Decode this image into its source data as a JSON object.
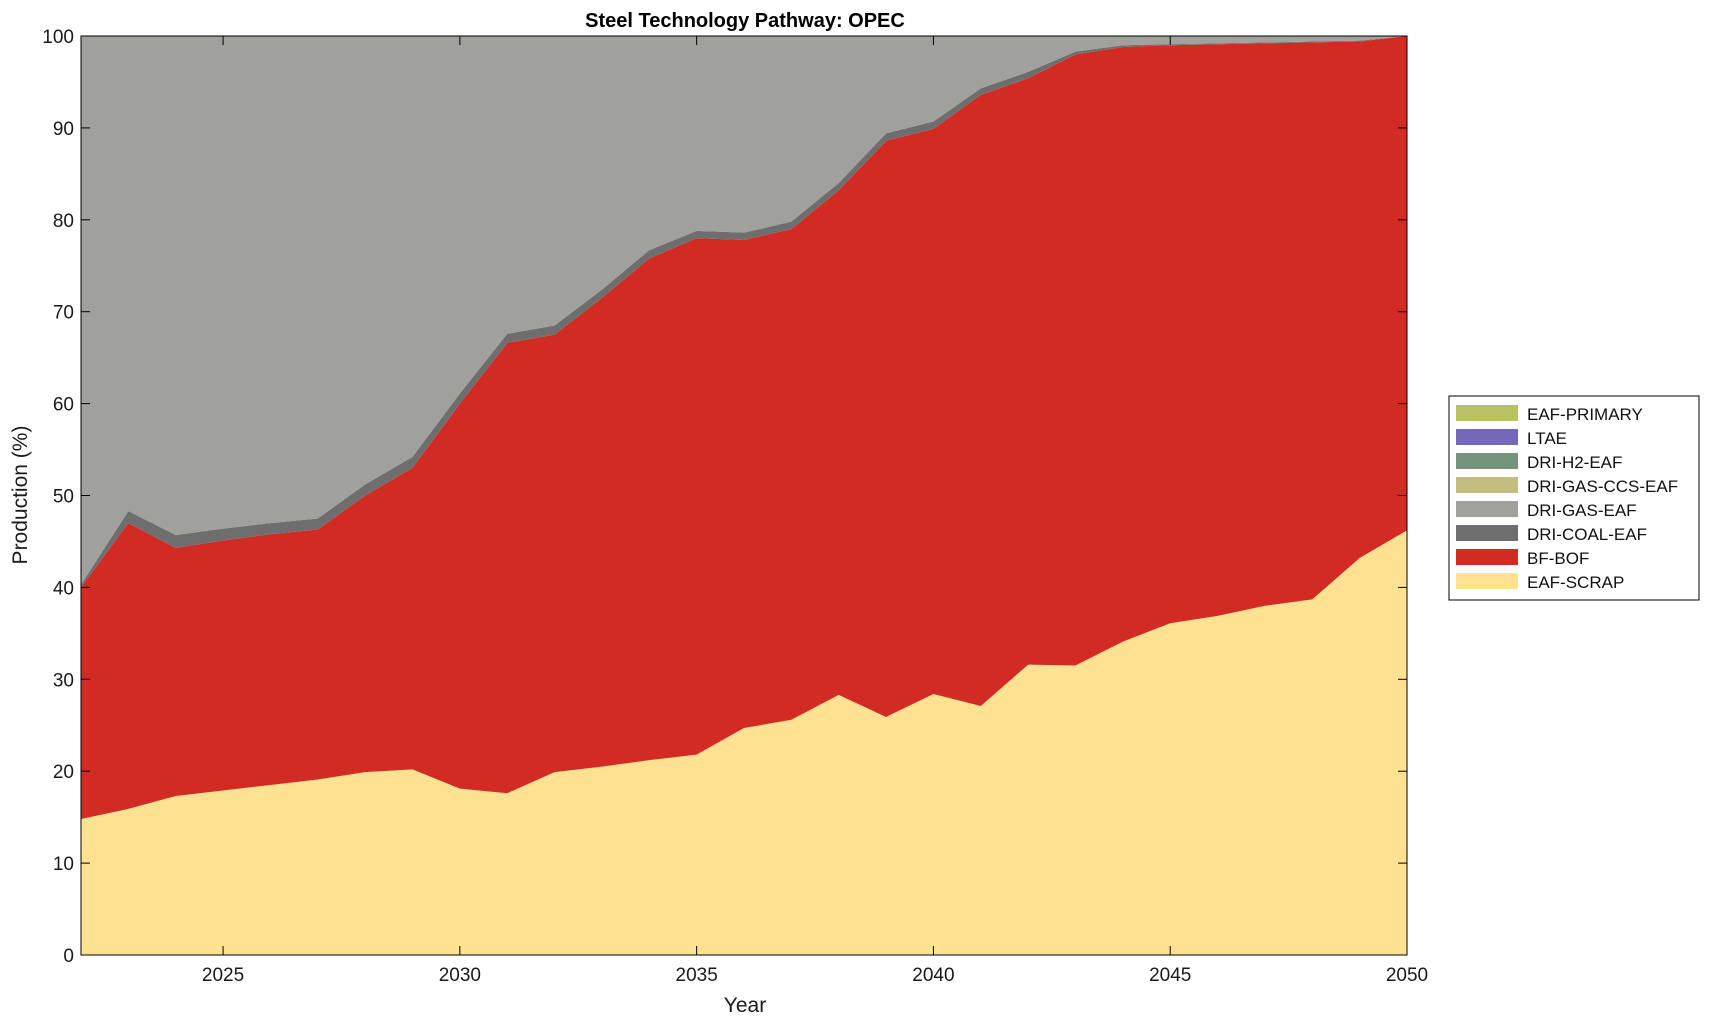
{
  "chart_data": {
    "type": "area",
    "title": "Steel Technology Pathway: OPEC",
    "xlabel": "Year",
    "ylabel": "Production (%)",
    "xlim": [
      2022,
      2050
    ],
    "ylim": [
      0,
      100
    ],
    "xticks": [
      2025,
      2030,
      2035,
      2040,
      2045,
      2050
    ],
    "yticks": [
      0,
      10,
      20,
      30,
      40,
      50,
      60,
      70,
      80,
      90,
      100
    ],
    "grid": false,
    "legend_position": "right",
    "x": [
      2022,
      2023,
      2024,
      2025,
      2026,
      2027,
      2028,
      2029,
      2030,
      2031,
      2032,
      2033,
      2034,
      2035,
      2036,
      2037,
      2038,
      2039,
      2040,
      2041,
      2042,
      2043,
      2044,
      2045,
      2046,
      2047,
      2048,
      2049,
      2050
    ],
    "stack_order_bottom_to_top": [
      "EAF-SCRAP",
      "BF-BOF",
      "DRI-COAL-EAF",
      "DRI-GAS-EAF",
      "DRI-GAS-CCS-EAF",
      "DRI-H2-EAF",
      "LTAE",
      "EAF-PRIMARY"
    ],
    "series": [
      {
        "name": "EAF-SCRAP",
        "color": "#FEE292",
        "values": [
          14.8,
          15.9,
          17.3,
          17.9,
          18.5,
          19.1,
          19.9,
          20.2,
          18.1,
          17.6,
          19.9,
          20.5,
          21.2,
          21.8,
          24.7,
          25.6,
          28.3,
          25.9,
          28.4,
          27.1,
          31.6,
          31.5,
          34.1,
          36.1,
          36.9,
          38.0,
          38.7,
          43.2,
          46.2
        ]
      },
      {
        "name": "BF-BOF",
        "color": "#D22B24",
        "values": [
          25.2,
          31.1,
          27.0,
          27.2,
          27.3,
          27.2,
          30.1,
          32.8,
          41.9,
          49.0,
          47.6,
          51.0,
          54.6,
          56.2,
          53.1,
          53.4,
          54.9,
          62.7,
          61.5,
          66.5,
          63.8,
          66.5,
          64.7,
          62.9,
          62.2,
          61.2,
          60.6,
          56.2,
          53.8
        ]
      },
      {
        "name": "DRI-COAL-EAF",
        "color": "#6E6E6E",
        "values": [
          0.3,
          1.3,
          1.4,
          1.3,
          1.2,
          1.2,
          1.2,
          1.2,
          1.1,
          1.0,
          1.0,
          0.9,
          0.9,
          0.8,
          0.8,
          0.8,
          0.8,
          0.8,
          0.8,
          0.7,
          0.7,
          0.3,
          0.2,
          0.1,
          0.1,
          0.1,
          0.1,
          0.1,
          0.0
        ]
      },
      {
        "name": "DRI-GAS-EAF",
        "color": "#A0A09D",
        "values": [
          59.7,
          51.7,
          54.3,
          53.6,
          53.0,
          52.5,
          48.8,
          45.8,
          38.9,
          32.4,
          31.5,
          27.6,
          23.3,
          21.2,
          21.4,
          20.2,
          16.0,
          10.6,
          9.3,
          5.7,
          3.9,
          1.7,
          1.0,
          0.9,
          0.8,
          0.7,
          0.6,
          0.5,
          0.0
        ]
      },
      {
        "name": "DRI-GAS-CCS-EAF",
        "color": "#C4BD81",
        "values": [
          0,
          0,
          0,
          0,
          0,
          0,
          0,
          0,
          0,
          0,
          0,
          0,
          0,
          0,
          0,
          0,
          0,
          0,
          0,
          0,
          0,
          0,
          0,
          0,
          0,
          0,
          0,
          0,
          0
        ]
      },
      {
        "name": "DRI-H2-EAF",
        "color": "#73947A",
        "values": [
          0,
          0,
          0,
          0,
          0,
          0,
          0,
          0,
          0,
          0,
          0,
          0,
          0,
          0,
          0,
          0,
          0,
          0,
          0,
          0,
          0,
          0,
          0,
          0,
          0,
          0,
          0,
          0,
          0
        ]
      },
      {
        "name": "LTAE",
        "color": "#7468BA",
        "values": [
          0,
          0,
          0,
          0,
          0,
          0,
          0,
          0,
          0,
          0,
          0,
          0,
          0,
          0,
          0,
          0,
          0,
          0,
          0,
          0,
          0,
          0,
          0,
          0,
          0,
          0,
          0,
          0,
          0
        ]
      },
      {
        "name": "EAF-PRIMARY",
        "color": "#B9C167",
        "values": [
          0,
          0,
          0,
          0,
          0,
          0,
          0,
          0,
          0,
          0,
          0,
          0,
          0,
          0,
          0,
          0,
          0,
          0,
          0,
          0,
          0,
          0,
          0,
          0,
          0,
          0,
          0,
          0,
          0
        ]
      }
    ],
    "legend_order": [
      "EAF-PRIMARY",
      "LTAE",
      "DRI-H2-EAF",
      "DRI-GAS-CCS-EAF",
      "DRI-GAS-EAF",
      "DRI-COAL-EAF",
      "BF-BOF",
      "EAF-SCRAP"
    ]
  }
}
